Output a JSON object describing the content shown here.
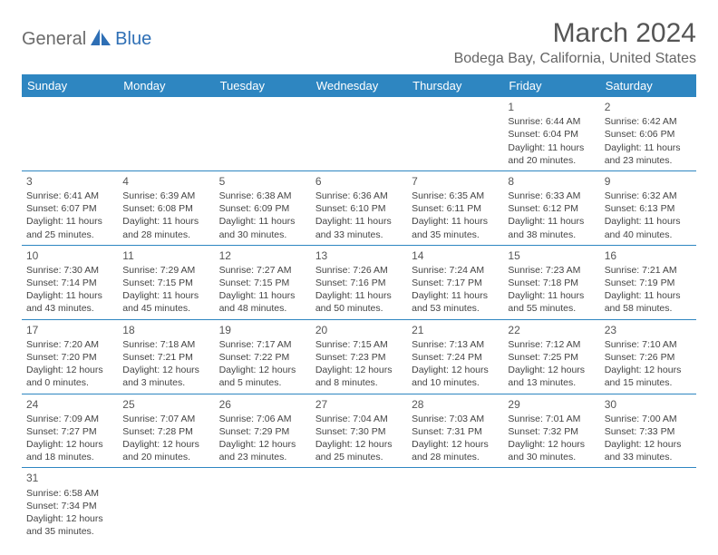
{
  "logo": {
    "part1": "General",
    "part2": "Blue"
  },
  "title": "March 2024",
  "subtitle": "Bodega Bay, California, United States",
  "header_bg": "#2e86c1",
  "header_fg": "#ffffff",
  "border_color": "#2e86c1",
  "weekdays": [
    "Sunday",
    "Monday",
    "Tuesday",
    "Wednesday",
    "Thursday",
    "Friday",
    "Saturday"
  ],
  "blank_cells_before": 5,
  "days": [
    {
      "n": "1",
      "sunrise": "Sunrise: 6:44 AM",
      "sunset": "Sunset: 6:04 PM",
      "daylight": "Daylight: 11 hours and 20 minutes."
    },
    {
      "n": "2",
      "sunrise": "Sunrise: 6:42 AM",
      "sunset": "Sunset: 6:06 PM",
      "daylight": "Daylight: 11 hours and 23 minutes."
    },
    {
      "n": "3",
      "sunrise": "Sunrise: 6:41 AM",
      "sunset": "Sunset: 6:07 PM",
      "daylight": "Daylight: 11 hours and 25 minutes."
    },
    {
      "n": "4",
      "sunrise": "Sunrise: 6:39 AM",
      "sunset": "Sunset: 6:08 PM",
      "daylight": "Daylight: 11 hours and 28 minutes."
    },
    {
      "n": "5",
      "sunrise": "Sunrise: 6:38 AM",
      "sunset": "Sunset: 6:09 PM",
      "daylight": "Daylight: 11 hours and 30 minutes."
    },
    {
      "n": "6",
      "sunrise": "Sunrise: 6:36 AM",
      "sunset": "Sunset: 6:10 PM",
      "daylight": "Daylight: 11 hours and 33 minutes."
    },
    {
      "n": "7",
      "sunrise": "Sunrise: 6:35 AM",
      "sunset": "Sunset: 6:11 PM",
      "daylight": "Daylight: 11 hours and 35 minutes."
    },
    {
      "n": "8",
      "sunrise": "Sunrise: 6:33 AM",
      "sunset": "Sunset: 6:12 PM",
      "daylight": "Daylight: 11 hours and 38 minutes."
    },
    {
      "n": "9",
      "sunrise": "Sunrise: 6:32 AM",
      "sunset": "Sunset: 6:13 PM",
      "daylight": "Daylight: 11 hours and 40 minutes."
    },
    {
      "n": "10",
      "sunrise": "Sunrise: 7:30 AM",
      "sunset": "Sunset: 7:14 PM",
      "daylight": "Daylight: 11 hours and 43 minutes."
    },
    {
      "n": "11",
      "sunrise": "Sunrise: 7:29 AM",
      "sunset": "Sunset: 7:15 PM",
      "daylight": "Daylight: 11 hours and 45 minutes."
    },
    {
      "n": "12",
      "sunrise": "Sunrise: 7:27 AM",
      "sunset": "Sunset: 7:15 PM",
      "daylight": "Daylight: 11 hours and 48 minutes."
    },
    {
      "n": "13",
      "sunrise": "Sunrise: 7:26 AM",
      "sunset": "Sunset: 7:16 PM",
      "daylight": "Daylight: 11 hours and 50 minutes."
    },
    {
      "n": "14",
      "sunrise": "Sunrise: 7:24 AM",
      "sunset": "Sunset: 7:17 PM",
      "daylight": "Daylight: 11 hours and 53 minutes."
    },
    {
      "n": "15",
      "sunrise": "Sunrise: 7:23 AM",
      "sunset": "Sunset: 7:18 PM",
      "daylight": "Daylight: 11 hours and 55 minutes."
    },
    {
      "n": "16",
      "sunrise": "Sunrise: 7:21 AM",
      "sunset": "Sunset: 7:19 PM",
      "daylight": "Daylight: 11 hours and 58 minutes."
    },
    {
      "n": "17",
      "sunrise": "Sunrise: 7:20 AM",
      "sunset": "Sunset: 7:20 PM",
      "daylight": "Daylight: 12 hours and 0 minutes."
    },
    {
      "n": "18",
      "sunrise": "Sunrise: 7:18 AM",
      "sunset": "Sunset: 7:21 PM",
      "daylight": "Daylight: 12 hours and 3 minutes."
    },
    {
      "n": "19",
      "sunrise": "Sunrise: 7:17 AM",
      "sunset": "Sunset: 7:22 PM",
      "daylight": "Daylight: 12 hours and 5 minutes."
    },
    {
      "n": "20",
      "sunrise": "Sunrise: 7:15 AM",
      "sunset": "Sunset: 7:23 PM",
      "daylight": "Daylight: 12 hours and 8 minutes."
    },
    {
      "n": "21",
      "sunrise": "Sunrise: 7:13 AM",
      "sunset": "Sunset: 7:24 PM",
      "daylight": "Daylight: 12 hours and 10 minutes."
    },
    {
      "n": "22",
      "sunrise": "Sunrise: 7:12 AM",
      "sunset": "Sunset: 7:25 PM",
      "daylight": "Daylight: 12 hours and 13 minutes."
    },
    {
      "n": "23",
      "sunrise": "Sunrise: 7:10 AM",
      "sunset": "Sunset: 7:26 PM",
      "daylight": "Daylight: 12 hours and 15 minutes."
    },
    {
      "n": "24",
      "sunrise": "Sunrise: 7:09 AM",
      "sunset": "Sunset: 7:27 PM",
      "daylight": "Daylight: 12 hours and 18 minutes."
    },
    {
      "n": "25",
      "sunrise": "Sunrise: 7:07 AM",
      "sunset": "Sunset: 7:28 PM",
      "daylight": "Daylight: 12 hours and 20 minutes."
    },
    {
      "n": "26",
      "sunrise": "Sunrise: 7:06 AM",
      "sunset": "Sunset: 7:29 PM",
      "daylight": "Daylight: 12 hours and 23 minutes."
    },
    {
      "n": "27",
      "sunrise": "Sunrise: 7:04 AM",
      "sunset": "Sunset: 7:30 PM",
      "daylight": "Daylight: 12 hours and 25 minutes."
    },
    {
      "n": "28",
      "sunrise": "Sunrise: 7:03 AM",
      "sunset": "Sunset: 7:31 PM",
      "daylight": "Daylight: 12 hours and 28 minutes."
    },
    {
      "n": "29",
      "sunrise": "Sunrise: 7:01 AM",
      "sunset": "Sunset: 7:32 PM",
      "daylight": "Daylight: 12 hours and 30 minutes."
    },
    {
      "n": "30",
      "sunrise": "Sunrise: 7:00 AM",
      "sunset": "Sunset: 7:33 PM",
      "daylight": "Daylight: 12 hours and 33 minutes."
    },
    {
      "n": "31",
      "sunrise": "Sunrise: 6:58 AM",
      "sunset": "Sunset: 7:34 PM",
      "daylight": "Daylight: 12 hours and 35 minutes."
    }
  ]
}
